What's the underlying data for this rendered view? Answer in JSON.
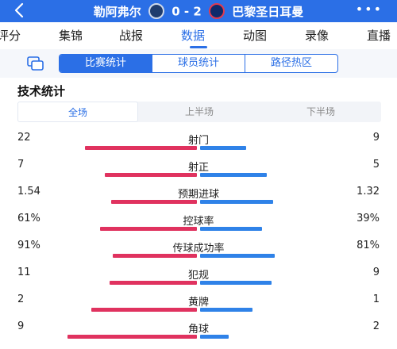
{
  "header": {
    "home_team": "勒阿弗尔",
    "score": "0 - 2",
    "away_team": "巴黎圣日耳曼",
    "more": "•••"
  },
  "tabs": [
    {
      "label": "评分"
    },
    {
      "label": "集锦"
    },
    {
      "label": "战报"
    },
    {
      "label": "数据"
    },
    {
      "label": "动图"
    },
    {
      "label": "录像"
    },
    {
      "label": "直播"
    }
  ],
  "active_tab": "数据",
  "segments": [
    "比赛统计",
    "球员统计",
    "路径热区"
  ],
  "section_title": "技术统计",
  "periods": [
    "全场",
    "上半场",
    "下半场"
  ],
  "colors": {
    "home": "#e0325f",
    "away": "#2f82e8",
    "accent": "#2b6fe6"
  },
  "stats": [
    {
      "label": "射门",
      "home": "22",
      "away": "9",
      "home_share": 0.71,
      "away_share": 0.29
    },
    {
      "label": "射正",
      "home": "7",
      "away": "5",
      "home_share": 0.58,
      "away_share": 0.42
    },
    {
      "label": "预期进球",
      "home": "1.54",
      "away": "1.32",
      "home_share": 0.54,
      "away_share": 0.46
    },
    {
      "label": "控球率",
      "home": "61%",
      "away": "39%",
      "home_share": 0.61,
      "away_share": 0.39
    },
    {
      "label": "传球成功率",
      "home": "91%",
      "away": "81%",
      "home_share": 0.53,
      "away_share": 0.47
    },
    {
      "label": "犯规",
      "home": "11",
      "away": "9",
      "home_share": 0.55,
      "away_share": 0.45
    },
    {
      "label": "黄牌",
      "home": "2",
      "away": "1",
      "home_share": 0.67,
      "away_share": 0.33
    },
    {
      "label": "角球",
      "home": "9",
      "away": "2",
      "home_share": 0.82,
      "away_share": 0.18
    }
  ]
}
